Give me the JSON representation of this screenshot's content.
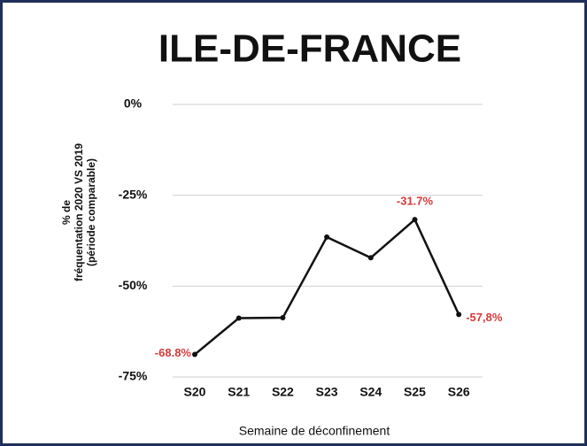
{
  "chart_data": {
    "type": "line",
    "title": "ILE-DE-FRANCE",
    "ylabel": [
      "% de",
      "fréquentation 2020 VS 2019",
      "(période comparable)"
    ],
    "xlabel": "Semaine de déconfinement",
    "categories": [
      "S20",
      "S21",
      "S22",
      "S23",
      "S24",
      "S25",
      "S26"
    ],
    "values": [
      -68.8,
      -58.8,
      -58.7,
      -36.5,
      -42.2,
      -31.7,
      -57.8
    ],
    "value_labels": [
      "-68.8%",
      null,
      null,
      null,
      null,
      "-31.7%",
      "-57,8%"
    ],
    "color": "#111111",
    "label_color": "#d63a3a",
    "ylim": [
      -75,
      0
    ],
    "yticks": [
      {
        "value": 0,
        "label": "0%"
      },
      {
        "value": -25,
        "label": "-25%"
      },
      {
        "value": -50,
        "label": "-50%"
      },
      {
        "value": -75,
        "label": "-75%"
      }
    ],
    "grid": true
  }
}
